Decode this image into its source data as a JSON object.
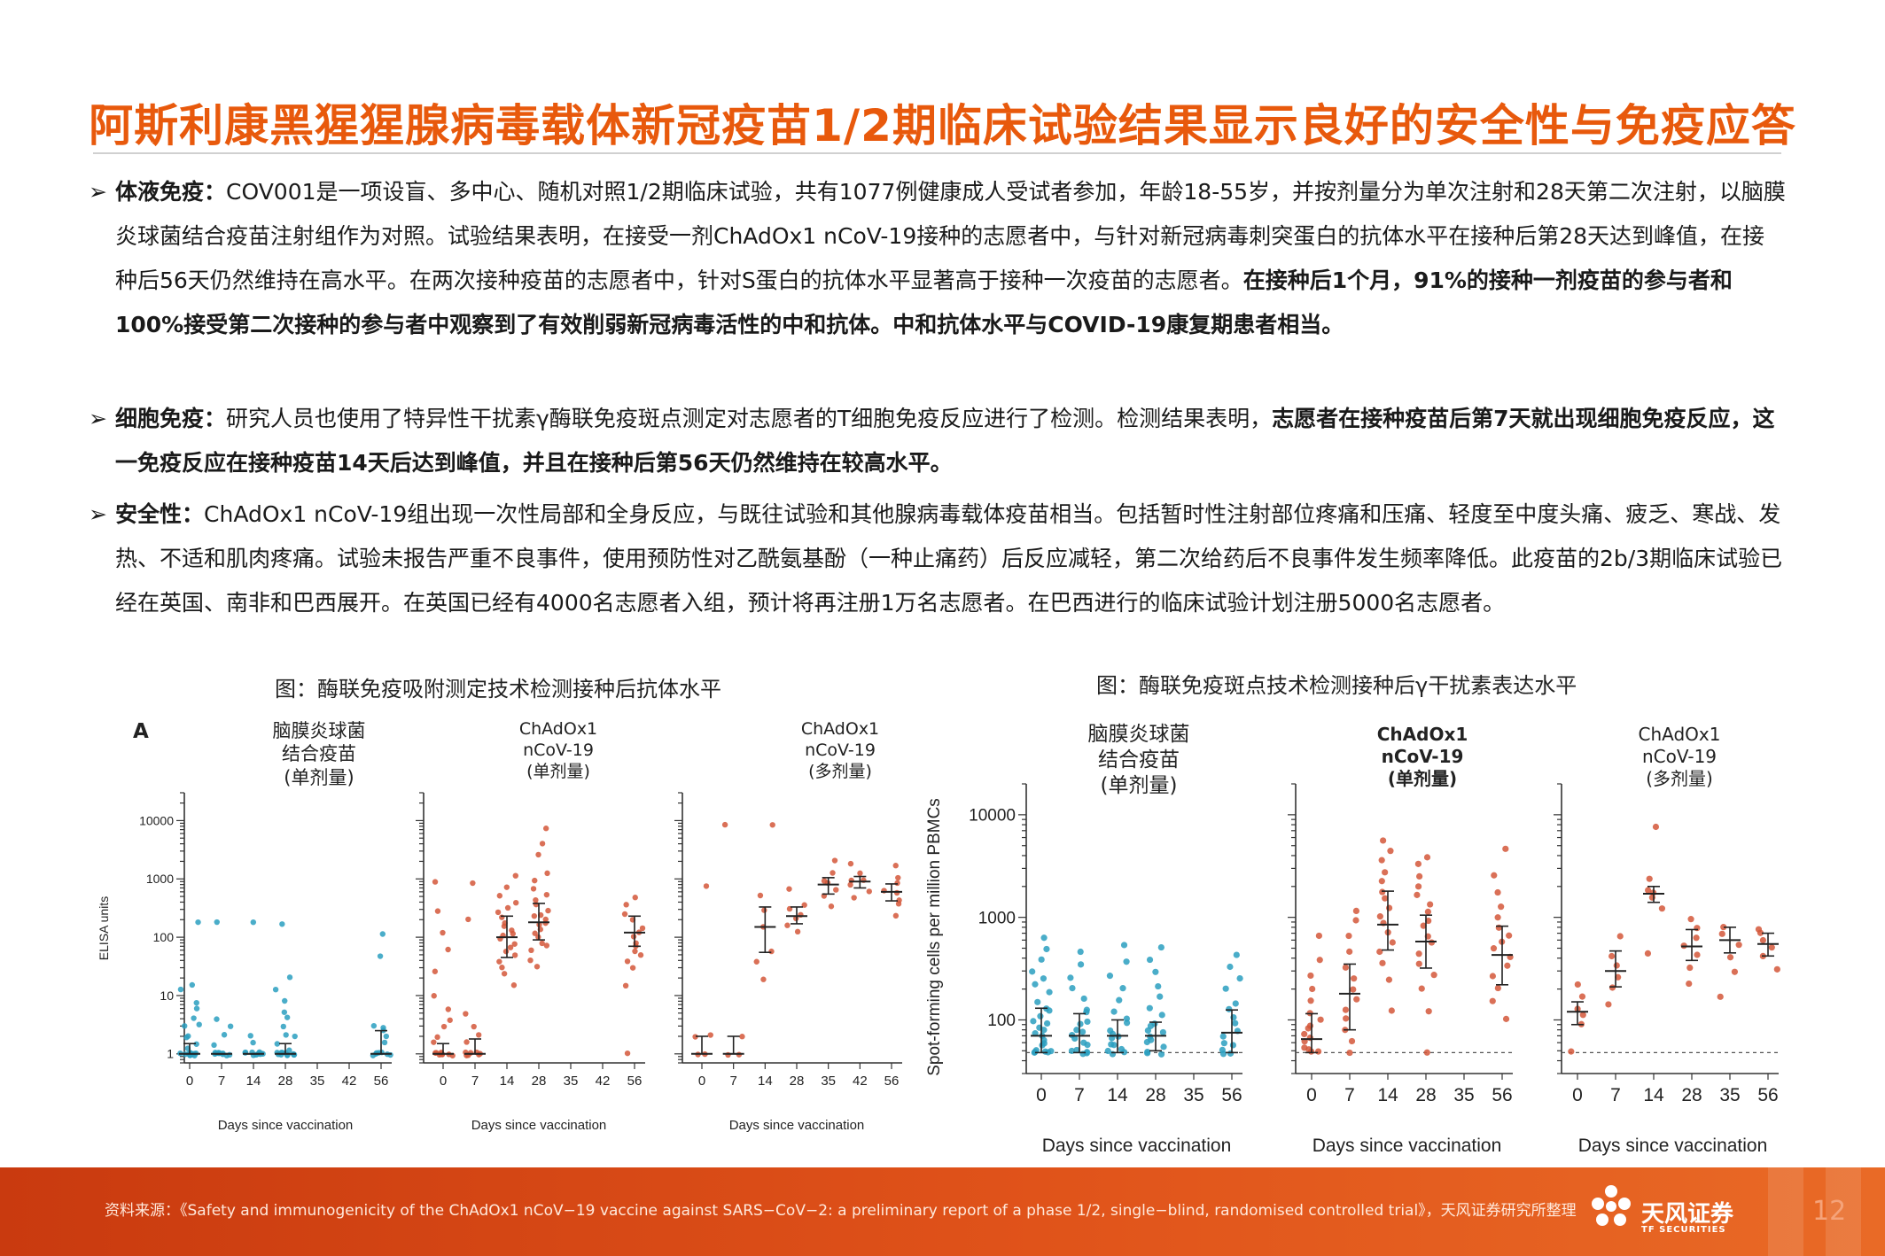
{
  "title": "阿斯利康黑猩猩腺病毒载体新冠疫苗1/2期临床试验结果显示良好的安全性与免疫应答",
  "bullet_symbol": "➢",
  "paragraphs": [
    {
      "label": "体液免疫：",
      "text": "COV001是一项设盲、多中心、随机对照1/2期临床试验，共有1077例健康成人受试者参加，年龄18-55岁，并按剂量分为单次注射和28天第二次注射，以脑膜炎球菌结合疫苗注射组作为对照。试验结果表明，在接受一剂ChAdOx1 nCoV-19接种的志愿者中，与针对新冠病毒刺突蛋白的抗体水平在接种后第28天达到峰值，在接种后56天仍然维持在高水平。在两次接种疫苗的志愿者中，针对S蛋白的抗体水平显著高于接种一次疫苗的志愿者。",
      "emphasis": "在接种后1个月，91%的接种一剂疫苗的参与者和100%接受第二次接种的参与者中观察到了有效削弱新冠病毒活性的中和抗体。中和抗体水平与COVID-19康复期患者相当。"
    },
    {
      "label": "细胞免疫：",
      "text": "研究人员也使用了特异性干扰素γ酶联免疫斑点测定对志愿者的T细胞免疫反应进行了检测。检测结果表明，",
      "emphasis": "志愿者在接种疫苗后第7天就出现细胞免疫反应，这一免疫反应在接种疫苗14天后达到峰值，并且在接种后第56天仍然维持在较高水平。"
    },
    {
      "label": "安全性：",
      "text": "ChAdOx1 nCoV-19组出现一次性局部和全身反应，与既往试验和其他腺病毒载体疫苗相当。包括暂时性注射部位疼痛和压痛、轻度至中度头痛、疲乏、寒战、发热、不适和肌肉疼痛。试验未报告严重不良事件，使用预防性对乙酰氨基酚（一种止痛药）后反应减轻，第二次给药后不良事件发生频率降低。此疫苗的2b/3期临床试验已经在英国、南非和巴西展开。在英国已经有4000名志愿者入组，预计将再注册1万名志愿者。在巴西进行的临床试验计划注册5000名志愿者。",
      "emphasis": ""
    }
  ],
  "figure_left": {
    "caption": "图：酶联免疫吸附测定技术检测接种后抗体水平",
    "panel_letter": "A",
    "ylabel": "ELISA units",
    "xlabel": "Days since vaccination"
  },
  "figure_right": {
    "caption": "图：酶联免疫斑点技术检测接种后γ干扰素表达水平",
    "ylabel": "Spot-forming cells per million PBMCs",
    "xlabel": "Days since vaccination"
  },
  "chart_data": [
    {
      "type": "scatter",
      "title": "脑膜炎球菌\n结合疫苗\n(单剂量)",
      "xlabel": "Days since vaccination",
      "ylabel": "ELISA units",
      "x_ticks": [
        "0",
        "7",
        "14",
        "28",
        "35",
        "42",
        "56"
      ],
      "y_ticks": [
        "1",
        "10",
        "100",
        "1000",
        "10000"
      ],
      "yscale": "log",
      "ylim": [
        0.7,
        30000
      ],
      "color": "#2a9fc0",
      "groups": [
        {
          "x": "0",
          "median": 1,
          "low": 1,
          "high": 1.5,
          "values": [
            1,
            1,
            1,
            1,
            1,
            1,
            1,
            1,
            1,
            1,
            1,
            1,
            1.2,
            1.5,
            2,
            2,
            3,
            3,
            4,
            6,
            8,
            12,
            15,
            180
          ]
        },
        {
          "x": "7",
          "median": 1,
          "low": 1,
          "high": 1,
          "values": [
            1,
            1,
            1,
            1,
            1,
            1,
            1,
            1,
            1,
            1,
            1.5,
            2,
            3,
            4,
            170
          ]
        },
        {
          "x": "14",
          "median": 1,
          "low": 1,
          "high": 1,
          "values": [
            1,
            1,
            1,
            1,
            1,
            1,
            1,
            1,
            1,
            1,
            1,
            1.5,
            2,
            170
          ]
        },
        {
          "x": "28",
          "median": 1,
          "low": 1,
          "high": 1.5,
          "values": [
            1,
            1,
            1,
            1,
            1,
            1,
            1,
            1,
            1,
            1,
            1,
            1.2,
            1.5,
            2,
            2,
            3,
            4,
            5,
            8,
            12,
            22,
            170
          ]
        },
        {
          "x": "56",
          "median": 1,
          "low": 1,
          "high": 2.5,
          "values": [
            1,
            1,
            1,
            1,
            1,
            1,
            1,
            1.5,
            2,
            2.5,
            3,
            3,
            45,
            110
          ]
        }
      ]
    },
    {
      "type": "scatter",
      "title": "ChAdOx1\nnCoV-19\n(单剂量)",
      "xlabel": "Days since vaccination",
      "ylabel": "ELISA units",
      "x_ticks": [
        "0",
        "7",
        "14",
        "28",
        "35",
        "42",
        "56"
      ],
      "y_ticks": [
        "1",
        "10",
        "100",
        "1000",
        "10000"
      ],
      "yscale": "log",
      "ylim": [
        0.7,
        30000
      ],
      "color": "#d4573a",
      "groups": [
        {
          "x": "0",
          "median": 1,
          "low": 1,
          "high": 1.5,
          "values": [
            1,
            1,
            1,
            1,
            1,
            1,
            1,
            1,
            1,
            1.5,
            2,
            3,
            4,
            6,
            10,
            25,
            60,
            120,
            300,
            900
          ]
        },
        {
          "x": "7",
          "median": 1,
          "low": 1,
          "high": 1.8,
          "values": [
            1,
            1,
            1,
            1,
            1,
            1,
            1,
            1.5,
            2,
            3,
            5,
            200,
            800
          ]
        },
        {
          "x": "14",
          "median": 100,
          "low": 45,
          "high": 230,
          "values": [
            15,
            25,
            30,
            40,
            50,
            60,
            70,
            80,
            90,
            100,
            110,
            130,
            150,
            180,
            220,
            260,
            320,
            400,
            500,
            700,
            1200
          ]
        },
        {
          "x": "28",
          "median": 180,
          "low": 90,
          "high": 380,
          "values": [
            30,
            40,
            60,
            70,
            80,
            100,
            120,
            140,
            160,
            180,
            200,
            220,
            250,
            300,
            350,
            420,
            520,
            700,
            900,
            1300,
            2500,
            4000,
            7000
          ]
        },
        {
          "x": "56",
          "median": 120,
          "low": 70,
          "high": 230,
          "values": [
            1,
            15,
            30,
            40,
            50,
            60,
            70,
            80,
            100,
            120,
            150,
            200,
            260,
            350,
            450
          ]
        }
      ]
    },
    {
      "type": "scatter",
      "title": "ChAdOx1\nnCoV-19\n(多剂量)",
      "xlabel": "Days since vaccination",
      "ylabel": "ELISA units",
      "x_ticks": [
        "0",
        "7",
        "14",
        "28",
        "35",
        "42",
        "56"
      ],
      "y_ticks": [
        "1",
        "10",
        "100",
        "1000",
        "10000"
      ],
      "yscale": "log",
      "ylim": [
        0.7,
        30000
      ],
      "color": "#d4573a",
      "groups": [
        {
          "x": "0",
          "median": 1,
          "low": 1,
          "high": 2,
          "values": [
            1,
            1,
            2,
            2,
            800
          ]
        },
        {
          "x": "7",
          "median": 1,
          "low": 1,
          "high": 2,
          "values": [
            1,
            1,
            2,
            8000
          ]
        },
        {
          "x": "14",
          "median": 150,
          "low": 55,
          "high": 330,
          "values": [
            20,
            40,
            60,
            150,
            300,
            500,
            9000
          ]
        },
        {
          "x": "28",
          "median": 230,
          "low": 170,
          "high": 330,
          "values": [
            120,
            160,
            200,
            250,
            300,
            380,
            650
          ]
        },
        {
          "x": "35",
          "median": 800,
          "low": 550,
          "high": 1050,
          "values": [
            350,
            500,
            650,
            800,
            950,
            1200,
            2000
          ]
        },
        {
          "x": "42",
          "median": 900,
          "low": 700,
          "high": 1100,
          "values": [
            450,
            600,
            750,
            900,
            1000,
            1200,
            1700
          ]
        },
        {
          "x": "56",
          "median": 600,
          "low": 420,
          "high": 820,
          "values": [
            250,
            350,
            450,
            550,
            650,
            800,
            1100,
            1600
          ]
        }
      ]
    },
    {
      "type": "scatter",
      "title": "脑膜炎球菌\n结合疫苗\n(单剂量)",
      "xlabel": "Days since vaccination",
      "ylabel": "Spot-forming cells per million PBMCs",
      "x_ticks": [
        "0",
        "7",
        "14",
        "28",
        "35",
        "56"
      ],
      "y_ticks": [
        "100",
        "1000",
        "10000"
      ],
      "yscale": "log",
      "ylim": [
        30,
        20000
      ],
      "reference_line": 48,
      "color": "#2a9fc0",
      "groups": [
        {
          "x": "0",
          "median": 70,
          "low": 48,
          "high": 130,
          "values": [
            48,
            48,
            48,
            48,
            50,
            52,
            55,
            60,
            65,
            70,
            75,
            80,
            85,
            90,
            100,
            110,
            120,
            130,
            150,
            180,
            220,
            250,
            300,
            380,
            480,
            620
          ]
        },
        {
          "x": "7",
          "median": 70,
          "low": 48,
          "high": 115,
          "values": [
            48,
            48,
            48,
            50,
            52,
            55,
            60,
            65,
            70,
            75,
            80,
            90,
            100,
            115,
            130,
            160,
            200,
            260,
            350,
            450
          ]
        },
        {
          "x": "14",
          "median": 70,
          "low": 48,
          "high": 100,
          "values": [
            48,
            48,
            48,
            50,
            55,
            60,
            65,
            70,
            75,
            80,
            90,
            100,
            120,
            150,
            200,
            280,
            380,
            550
          ]
        },
        {
          "x": "28",
          "median": 70,
          "low": 50,
          "high": 95,
          "values": [
            48,
            48,
            50,
            55,
            60,
            65,
            70,
            75,
            80,
            85,
            95,
            110,
            130,
            170,
            220,
            300,
            400,
            520
          ]
        },
        {
          "x": "56",
          "median": 75,
          "low": 48,
          "high": 125,
          "values": [
            48,
            48,
            50,
            55,
            60,
            70,
            80,
            90,
            110,
            125,
            150,
            200,
            260,
            330,
            430
          ]
        }
      ]
    },
    {
      "type": "scatter",
      "title": "ChAdOx1\nnCoV-19\n(单剂量)",
      "xlabel": "Days since vaccination",
      "ylabel": "Spot-forming cells per million PBMCs",
      "x_ticks": [
        "0",
        "7",
        "14",
        "28",
        "35",
        "56"
      ],
      "y_ticks": [
        "100",
        "1000",
        "10000"
      ],
      "yscale": "log",
      "ylim": [
        30,
        20000
      ],
      "reference_line": 48,
      "color": "#d4573a",
      "groups": [
        {
          "x": "0",
          "median": 65,
          "low": 48,
          "high": 115,
          "values": [
            48,
            48,
            50,
            55,
            60,
            65,
            70,
            80,
            90,
            100,
            120,
            150,
            200,
            280,
            380,
            650
          ]
        },
        {
          "x": "7",
          "median": 180,
          "low": 80,
          "high": 350,
          "values": [
            48,
            60,
            80,
            100,
            130,
            160,
            200,
            260,
            330,
            450,
            650,
            900,
            1200
          ]
        },
        {
          "x": "14",
          "median": 850,
          "low": 480,
          "high": 1800,
          "values": [
            120,
            250,
            350,
            450,
            550,
            700,
            850,
            1000,
            1200,
            1500,
            1800,
            2200,
            2800,
            3500,
            4500,
            5500
          ]
        },
        {
          "x": "28",
          "median": 580,
          "low": 320,
          "high": 1050,
          "values": [
            48,
            120,
            200,
            280,
            350,
            450,
            550,
            650,
            800,
            950,
            1100,
            1300,
            1600,
            2000,
            2600,
            3200,
            4000
          ]
        },
        {
          "x": "56",
          "median": 430,
          "low": 220,
          "high": 820,
          "values": [
            100,
            150,
            200,
            260,
            330,
            400,
            480,
            560,
            650,
            800,
            1000,
            1300,
            1800,
            2500,
            4500
          ]
        }
      ]
    },
    {
      "type": "scatter",
      "title": "ChAdOx1\nnCoV-19\n(多剂量)",
      "xlabel": "Days since vaccination",
      "ylabel": "Spot-forming cells per million PBMCs",
      "x_ticks": [
        "0",
        "7",
        "14",
        "28",
        "35",
        "56"
      ],
      "y_ticks": [
        "100",
        "1000",
        "10000"
      ],
      "yscale": "log",
      "ylim": [
        30,
        20000
      ],
      "reference_line": 48,
      "color": "#d4573a",
      "groups": [
        {
          "x": "0",
          "median": 120,
          "low": 90,
          "high": 150,
          "values": [
            48,
            90,
            110,
            130,
            170,
            220
          ]
        },
        {
          "x": "7",
          "median": 300,
          "low": 210,
          "high": 470,
          "values": [
            140,
            200,
            260,
            330,
            420,
            650
          ]
        },
        {
          "x": "14",
          "median": 1700,
          "low": 1400,
          "high": 2000,
          "values": [
            450,
            1200,
            1500,
            1700,
            1900,
            2300,
            7500
          ]
        },
        {
          "x": "28",
          "median": 520,
          "low": 380,
          "high": 760,
          "values": [
            230,
            330,
            420,
            520,
            620,
            800,
            950
          ]
        },
        {
          "x": "35",
          "median": 600,
          "low": 450,
          "high": 800,
          "values": [
            170,
            300,
            420,
            560,
            700,
            820
          ]
        },
        {
          "x": "56",
          "median": 550,
          "low": 420,
          "high": 700,
          "values": [
            320,
            420,
            500,
            580,
            680,
            780
          ]
        }
      ]
    }
  ],
  "footer": {
    "source": "资料来源：《Safety and immunogenicity of the ChAdOx1 nCoV−19 vaccine against SARS−CoV−2: a preliminary report of a phase 1/2, single−blind, randomised controlled trial》，天风证券研究所整理",
    "logo_cn": "天风证券",
    "logo_en": "TF SECURITIES",
    "page_number": "12",
    "brand_color": "#e0531a"
  }
}
